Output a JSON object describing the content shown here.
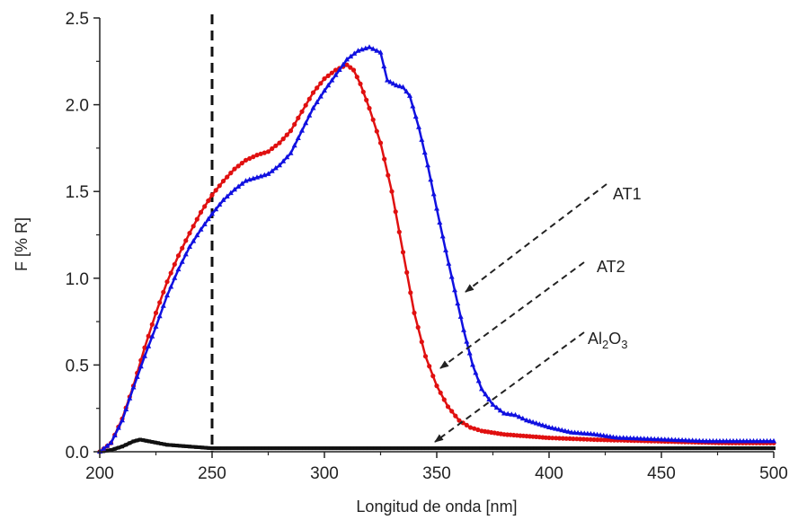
{
  "chart_data": {
    "type": "line",
    "title": "",
    "xlabel": "Longitud de onda [nm]",
    "ylabel": "F [% R]",
    "xlim": [
      200,
      500
    ],
    "ylim": [
      0,
      2.5
    ],
    "x_ticks": [
      200,
      250,
      300,
      350,
      400,
      450,
      500
    ],
    "y_ticks": [
      0.0,
      0.5,
      1.0,
      1.5,
      2.0,
      2.5
    ],
    "x_tick_labels": [
      "200",
      "250",
      "300",
      "350",
      "400",
      "450",
      "500"
    ],
    "y_tick_labels": [
      "0.0",
      "0.5",
      "1.0",
      "1.5",
      "2.0",
      "2.5"
    ],
    "grid": false,
    "reference_line": {
      "x": 250,
      "style": "dashed"
    },
    "series": [
      {
        "name": "AT1",
        "color": "#1010e0",
        "marker": "triangle",
        "points": [
          [
            200,
            0.0
          ],
          [
            205,
            0.05
          ],
          [
            210,
            0.18
          ],
          [
            215,
            0.37
          ],
          [
            220,
            0.55
          ],
          [
            225,
            0.72
          ],
          [
            230,
            0.9
          ],
          [
            235,
            1.05
          ],
          [
            240,
            1.18
          ],
          [
            245,
            1.28
          ],
          [
            250,
            1.37
          ],
          [
            255,
            1.45
          ],
          [
            260,
            1.51
          ],
          [
            265,
            1.56
          ],
          [
            270,
            1.58
          ],
          [
            275,
            1.6
          ],
          [
            280,
            1.65
          ],
          [
            285,
            1.72
          ],
          [
            290,
            1.85
          ],
          [
            295,
            1.98
          ],
          [
            300,
            2.08
          ],
          [
            305,
            2.17
          ],
          [
            310,
            2.26
          ],
          [
            315,
            2.31
          ],
          [
            320,
            2.33
          ],
          [
            325,
            2.3
          ],
          [
            328,
            2.14
          ],
          [
            332,
            2.11
          ],
          [
            335,
            2.1
          ],
          [
            338,
            2.05
          ],
          [
            342,
            1.87
          ],
          [
            346,
            1.65
          ],
          [
            350,
            1.4
          ],
          [
            354,
            1.16
          ],
          [
            358,
            0.93
          ],
          [
            362,
            0.7
          ],
          [
            366,
            0.5
          ],
          [
            370,
            0.36
          ],
          [
            375,
            0.27
          ],
          [
            380,
            0.22
          ],
          [
            385,
            0.21
          ],
          [
            390,
            0.18
          ],
          [
            400,
            0.14
          ],
          [
            410,
            0.11
          ],
          [
            420,
            0.1
          ],
          [
            430,
            0.08
          ],
          [
            450,
            0.07
          ],
          [
            470,
            0.06
          ],
          [
            500,
            0.06
          ]
        ]
      },
      {
        "name": "AT2",
        "color": "#e01010",
        "marker": "circle",
        "points": [
          [
            200,
            0.0
          ],
          [
            205,
            0.05
          ],
          [
            210,
            0.19
          ],
          [
            215,
            0.38
          ],
          [
            220,
            0.6
          ],
          [
            225,
            0.8
          ],
          [
            230,
            0.98
          ],
          [
            235,
            1.13
          ],
          [
            240,
            1.26
          ],
          [
            245,
            1.38
          ],
          [
            250,
            1.48
          ],
          [
            255,
            1.56
          ],
          [
            260,
            1.63
          ],
          [
            265,
            1.68
          ],
          [
            270,
            1.71
          ],
          [
            275,
            1.73
          ],
          [
            280,
            1.78
          ],
          [
            285,
            1.85
          ],
          [
            290,
            1.96
          ],
          [
            295,
            2.07
          ],
          [
            300,
            2.15
          ],
          [
            305,
            2.2
          ],
          [
            310,
            2.23
          ],
          [
            313,
            2.2
          ],
          [
            316,
            2.12
          ],
          [
            320,
            1.98
          ],
          [
            325,
            1.78
          ],
          [
            330,
            1.5
          ],
          [
            335,
            1.15
          ],
          [
            340,
            0.8
          ],
          [
            345,
            0.55
          ],
          [
            350,
            0.38
          ],
          [
            355,
            0.26
          ],
          [
            360,
            0.18
          ],
          [
            365,
            0.14
          ],
          [
            370,
            0.12
          ],
          [
            380,
            0.1
          ],
          [
            390,
            0.09
          ],
          [
            400,
            0.08
          ],
          [
            420,
            0.07
          ],
          [
            450,
            0.06
          ],
          [
            480,
            0.05
          ],
          [
            500,
            0.05
          ]
        ]
      },
      {
        "name": "Al2O3",
        "color": "#111111",
        "marker": "square",
        "points": [
          [
            200,
            0.0
          ],
          [
            205,
            0.01
          ],
          [
            210,
            0.03
          ],
          [
            215,
            0.06
          ],
          [
            218,
            0.07
          ],
          [
            222,
            0.06
          ],
          [
            226,
            0.05
          ],
          [
            230,
            0.04
          ],
          [
            240,
            0.03
          ],
          [
            250,
            0.02
          ],
          [
            300,
            0.02
          ],
          [
            350,
            0.02
          ],
          [
            400,
            0.02
          ],
          [
            450,
            0.02
          ],
          [
            500,
            0.02
          ]
        ]
      }
    ],
    "annotations": [
      {
        "text": "AT1",
        "target_series": "AT1",
        "style": "dashed-arrow"
      },
      {
        "text": "AT2",
        "target_series": "AT2",
        "style": "dashed-arrow"
      },
      {
        "text_parts": [
          "Al",
          "2",
          "O",
          "3"
        ],
        "target_series": "Al2O3",
        "style": "dashed-arrow"
      }
    ]
  }
}
